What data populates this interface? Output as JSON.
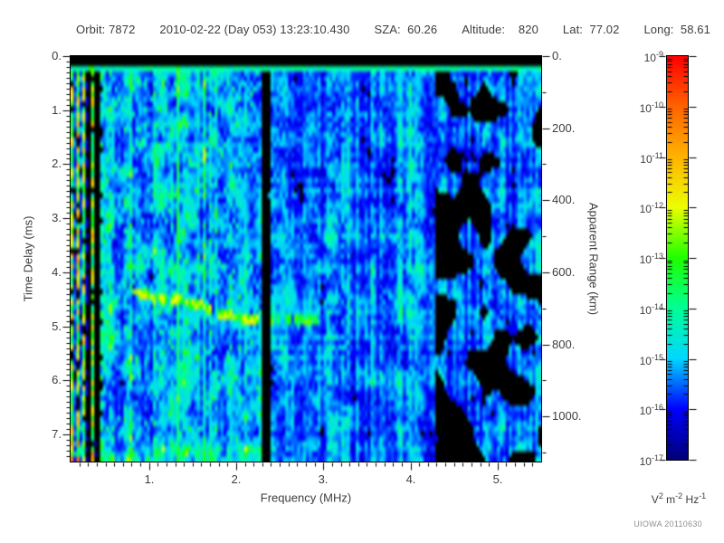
{
  "header": {
    "items": [
      "Orbit: 7872",
      "2010-02-22 (Day 053) 13:23:10.430",
      "SZA:  60.26",
      "Altitude:    820",
      "Lat:  77.02",
      "Long:  58.61"
    ]
  },
  "axes": {
    "time_delay": {
      "label": "Time Delay (ms)",
      "tick_labels": [
        "0.",
        "1.",
        "2.",
        "3.",
        "4.",
        "5.",
        "6.",
        "7."
      ],
      "tick_values": [
        0,
        1,
        2,
        3,
        4,
        5,
        6,
        7
      ],
      "minor_step": 0.1,
      "range": [
        0,
        7.5
      ]
    },
    "frequency": {
      "label": "Frequency (MHz)",
      "tick_labels": [
        "1.",
        "2.",
        "3.",
        "4.",
        "5."
      ],
      "tick_values": [
        1,
        2,
        3,
        4,
        5
      ],
      "minor_step": 0.1,
      "range": [
        0.1,
        5.5
      ]
    },
    "apparent_range": {
      "label": "Apparent Range (km)",
      "tick_labels": [
        "0.",
        "200.",
        "400.",
        "600.",
        "800.",
        "1000."
      ],
      "tick_values": [
        0,
        200,
        400,
        600,
        800,
        1000
      ],
      "minor_step": 100,
      "range": [
        0,
        1125
      ]
    }
  },
  "colorbar": {
    "scale": "log",
    "tick_exponents": [
      -9,
      -10,
      -11,
      -12,
      -13,
      -14,
      -15,
      -16,
      -17
    ],
    "units": "V^2 m^-2 Hz^-1"
  },
  "attribution": "UIOWA 20110630",
  "colors": {
    "text": "#3d3d3d",
    "attribution_text": "#8f8f8f",
    "background": "#ffffff",
    "plot_border": "#000000"
  },
  "chart_data": {
    "type": "heatmap",
    "xlabel": "Frequency (MHz)",
    "ylabel": "Time Delay (ms)",
    "y2label": "Apparent Range (km)",
    "zlabel": "V^2 m^-2 Hz^-1",
    "x_range": [
      0.1,
      5.5
    ],
    "y_range": [
      0,
      7.5
    ],
    "y2_range": [
      0,
      1125
    ],
    "y_inverted": true,
    "z_scale": "log",
    "z_range_exponents": [
      -17,
      -9
    ],
    "x_major_ticks": [
      1,
      2,
      3,
      4,
      5
    ],
    "y_major_ticks": [
      0,
      1,
      2,
      3,
      4,
      5,
      6,
      7
    ],
    "y2_major_ticks": [
      0,
      200,
      400,
      600,
      800,
      1000
    ],
    "grid": false,
    "legend": "colorbar-right",
    "colorbar": {
      "tick_exponents": [
        -9,
        -10,
        -11,
        -12,
        -13,
        -14,
        -15,
        -16,
        -17
      ],
      "gradient_stops": [
        [
          0.0,
          [
            0,
            0,
            120
          ]
        ],
        [
          0.125,
          [
            0,
            0,
            255
          ]
        ],
        [
          0.25,
          [
            0,
            215,
            255
          ]
        ],
        [
          0.375,
          [
            0,
            255,
            150
          ]
        ],
        [
          0.5,
          [
            30,
            255,
            0
          ]
        ],
        [
          0.625,
          [
            235,
            255,
            0
          ]
        ],
        [
          0.75,
          [
            255,
            180,
            0
          ]
        ],
        [
          0.875,
          [
            255,
            100,
            0
          ]
        ],
        [
          1.0,
          [
            255,
            0,
            0
          ]
        ]
      ]
    },
    "features": {
      "top_blackout_band_ms": [
        0,
        0.19
      ],
      "horizontal_line_ms": 0.25,
      "low_freq_interference_stripes_mhz": [
        0.1,
        0.47
      ],
      "bright_vertical_line_mhz": 1.33,
      "blackout_vertical_band_mhz": [
        2.29,
        2.41
      ],
      "dark_patchy_region_mhz": [
        4.3,
        5.5
      ],
      "faint_secondary_line_ms": 2.6,
      "echo_trace_points_mhz_ms": [
        [
          0.52,
          4.28
        ],
        [
          0.8,
          4.34
        ],
        [
          1.05,
          4.45
        ],
        [
          1.35,
          4.52
        ],
        [
          1.6,
          4.62
        ],
        [
          1.85,
          4.78
        ],
        [
          2.1,
          4.86
        ],
        [
          2.5,
          4.88
        ],
        [
          2.95,
          4.87
        ]
      ],
      "noise_floor_level_exponent_range": [
        -16.5,
        -14.5
      ],
      "echo_trace_level_exponent": -13
    }
  }
}
